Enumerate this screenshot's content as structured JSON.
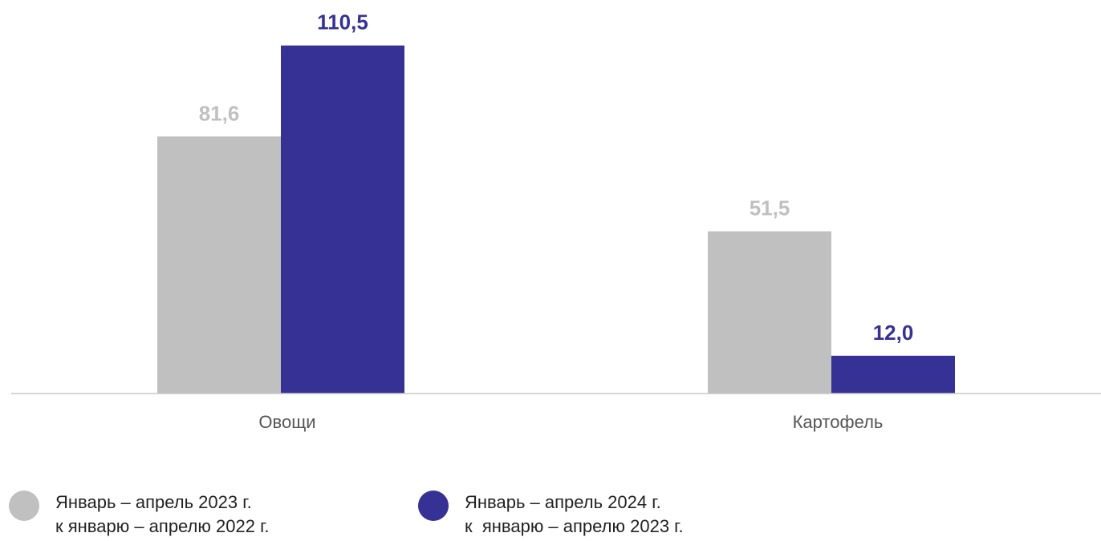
{
  "chart_data": {
    "type": "bar",
    "categories": [
      "Овощи",
      "Картофель"
    ],
    "series": [
      {
        "name": "Январь – апрель 2023 г. к январю – апрелю 2022 г.",
        "values": [
          81.6,
          51.5
        ],
        "labels": [
          "81,6",
          "51,5"
        ],
        "color": "#c0c0c0"
      },
      {
        "name": "Январь – апрель 2024 г. к январю – апрелю 2023 г.",
        "values": [
          110.5,
          12.0
        ],
        "labels": [
          "110,5",
          "12,0"
        ],
        "color": "#363194"
      }
    ],
    "ylim": [
      0,
      120
    ],
    "grid": false,
    "legend_position": "bottom"
  },
  "legend": [
    {
      "line1": "Январь – апрель 2023 г.",
      "line2": "к январю – апрелю 2022 г.",
      "color": "#c0c0c0"
    },
    {
      "line1": "Январь – апрель 2024 г.",
      "line2": "к  январю – апрелю 2023 г.",
      "color": "#363194"
    }
  ]
}
